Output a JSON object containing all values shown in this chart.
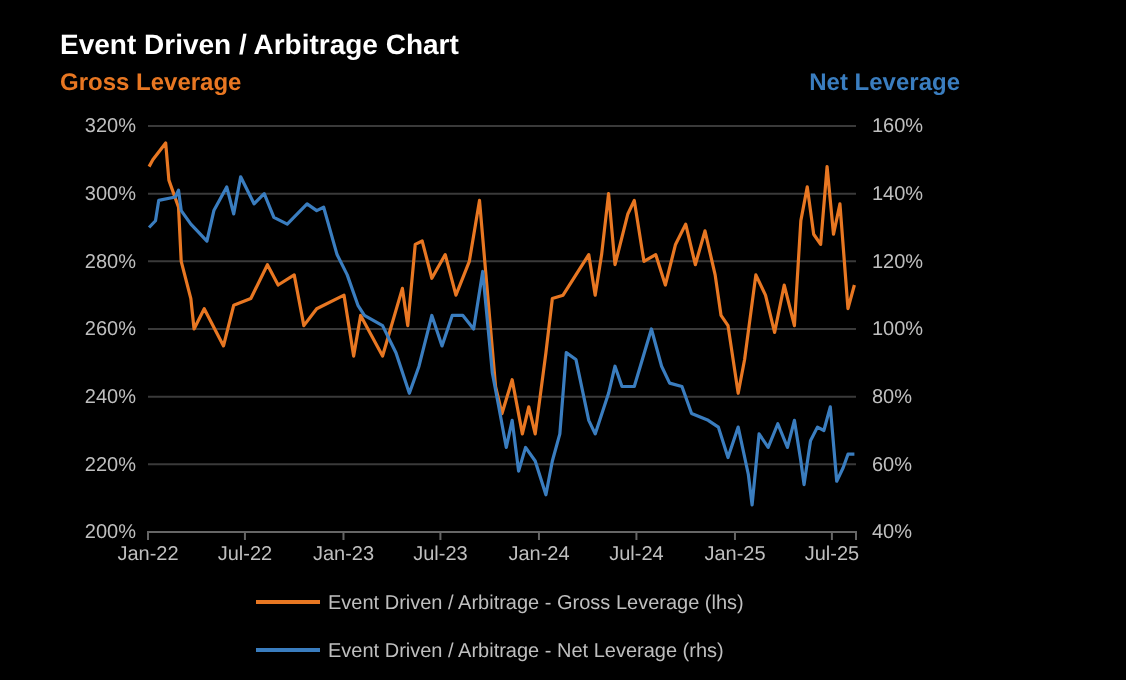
{
  "chart_data": {
    "type": "line",
    "title": "Event Driven / Arbitrage Chart",
    "ylabel": "Gross Leverage",
    "y2label": "Net Leverage",
    "xlim": [
      "2022-01-01",
      "2025-08-15"
    ],
    "xticks": [
      {
        "value": "2022-01-01",
        "label": "Jan-22"
      },
      {
        "value": "2022-07-01",
        "label": "Jul-22"
      },
      {
        "value": "2023-01-01",
        "label": "Jan-23"
      },
      {
        "value": "2023-07-01",
        "label": "Jul-23"
      },
      {
        "value": "2024-01-01",
        "label": "Jan-24"
      },
      {
        "value": "2024-07-01",
        "label": "Jul-24"
      },
      {
        "value": "2025-01-01",
        "label": "Jan-25"
      },
      {
        "value": "2025-07-01",
        "label": "Jul-25"
      }
    ],
    "ylim": [
      200,
      320
    ],
    "yticks": [
      {
        "value": 200,
        "label": "200%"
      },
      {
        "value": 220,
        "label": "220%"
      },
      {
        "value": 240,
        "label": "240%"
      },
      {
        "value": 260,
        "label": "260%"
      },
      {
        "value": 280,
        "label": "280%"
      },
      {
        "value": 300,
        "label": "300%"
      },
      {
        "value": 320,
        "label": "320%"
      }
    ],
    "y2lim": [
      40,
      160
    ],
    "y2ticks": [
      {
        "value": 40,
        "label": "40%"
      },
      {
        "value": 60,
        "label": "60%"
      },
      {
        "value": 80,
        "label": "80%"
      },
      {
        "value": 100,
        "label": "100%"
      },
      {
        "value": 120,
        "label": "120%"
      },
      {
        "value": 140,
        "label": "140%"
      },
      {
        "value": 160,
        "label": "160%"
      }
    ],
    "grid": "y",
    "legend": "bottom",
    "marker": "none",
    "line_style": "solid",
    "series": [
      {
        "name": "Event Driven / Arbitrage - Gross Leverage (lhs)",
        "color": "#e87722",
        "x": [
          "2022-01-03",
          "2022-01-10",
          "2022-02-03",
          "2022-02-09",
          "2022-02-27",
          "2022-03-04",
          "2022-03-22",
          "2022-03-28",
          "2022-04-16",
          "2022-05-22",
          "2022-06-10",
          "2022-07-12",
          "2022-08-12",
          "2022-09-01",
          "2022-10-01",
          "2022-10-19",
          "2022-11-12",
          "2023-01-02",
          "2023-01-20",
          "2023-02-02",
          "2023-03-15",
          "2023-04-21",
          "2023-05-01",
          "2023-05-15",
          "2023-05-28",
          "2023-06-15",
          "2023-07-10",
          "2023-07-30",
          "2023-08-24",
          "2023-09-12",
          "2023-09-24",
          "2023-10-12",
          "2023-10-24",
          "2023-11-12",
          "2023-12-01",
          "2023-12-13",
          "2023-12-25",
          "2024-01-14",
          "2024-01-26",
          "2024-02-15",
          "2024-03-10",
          "2024-04-03",
          "2024-04-15",
          "2024-04-27",
          "2024-05-10",
          "2024-05-22",
          "2024-06-15",
          "2024-06-27",
          "2024-07-15",
          "2024-08-06",
          "2024-08-24",
          "2024-09-12",
          "2024-10-01",
          "2024-10-19",
          "2024-11-06",
          "2024-11-25",
          "2024-12-06",
          "2024-12-19",
          "2025-01-07",
          "2025-01-19",
          "2025-02-09",
          "2025-02-27",
          "2025-03-16",
          "2025-04-03",
          "2025-04-22",
          "2025-05-04",
          "2025-05-16",
          "2025-05-28",
          "2025-06-10",
          "2025-06-22",
          "2025-07-04",
          "2025-07-16",
          "2025-07-31",
          "2025-08-12"
        ],
        "values": [
          308,
          310,
          315,
          304,
          296,
          280,
          269,
          260,
          266,
          255,
          267,
          269,
          279,
          273,
          276,
          261,
          266,
          270,
          252,
          264,
          252,
          272,
          261,
          285,
          286,
          275,
          282,
          270,
          280,
          298,
          276,
          243,
          235,
          245,
          229,
          237,
          229,
          253,
          269,
          270,
          276,
          282,
          270,
          282,
          300,
          279,
          294,
          298,
          280,
          282,
          273,
          285,
          291,
          279,
          289,
          276,
          264,
          261,
          241,
          251,
          276,
          270,
          259,
          273,
          261,
          292,
          302,
          288,
          285,
          308,
          288,
          297,
          266,
          273
        ]
      },
      {
        "name": "Event Driven / Arbitrage - Net Leverage (rhs)",
        "color": "#3a7dbf",
        "axis": "y2",
        "x": [
          "2022-01-03",
          "2022-01-15",
          "2022-01-21",
          "2022-02-21",
          "2022-02-27",
          "2022-03-04",
          "2022-03-22",
          "2022-04-03",
          "2022-04-21",
          "2022-05-04",
          "2022-05-28",
          "2022-06-10",
          "2022-06-23",
          "2022-07-18",
          "2022-08-06",
          "2022-08-24",
          "2022-09-18",
          "2022-10-25",
          "2022-11-12",
          "2022-11-25",
          "2022-12-20",
          "2023-01-08",
          "2023-01-28",
          "2023-02-09",
          "2023-03-15",
          "2023-04-09",
          "2023-05-04",
          "2023-05-22",
          "2023-06-15",
          "2023-07-04",
          "2023-07-23",
          "2023-08-12",
          "2023-09-01",
          "2023-09-18",
          "2023-10-06",
          "2023-10-18",
          "2023-11-01",
          "2023-11-12",
          "2023-11-24",
          "2023-12-07",
          "2023-12-25",
          "2024-01-14",
          "2024-01-26",
          "2024-02-09",
          "2024-02-21",
          "2024-03-10",
          "2024-04-03",
          "2024-04-15",
          "2024-05-10",
          "2024-05-22",
          "2024-06-04",
          "2024-06-27",
          "2024-07-29",
          "2024-08-17",
          "2024-09-01",
          "2024-09-24",
          "2024-10-12",
          "2024-11-12",
          "2024-12-01",
          "2024-12-19",
          "2025-01-07",
          "2025-01-26",
          "2025-02-02",
          "2025-02-15",
          "2025-03-04",
          "2025-03-22",
          "2025-04-09",
          "2025-04-22",
          "2025-05-04",
          "2025-05-10",
          "2025-05-22",
          "2025-06-04",
          "2025-06-16",
          "2025-06-28",
          "2025-07-10",
          "2025-07-22",
          "2025-07-31",
          "2025-08-12"
        ],
        "values": [
          130,
          132,
          138,
          139,
          141,
          135,
          131,
          129,
          126,
          135,
          142,
          134,
          145,
          137,
          140,
          133,
          131,
          137,
          135,
          136,
          122,
          116,
          107,
          104,
          101,
          93,
          81,
          89,
          104,
          95,
          104,
          104,
          100,
          117,
          87,
          77,
          65,
          73,
          58,
          65,
          61,
          51,
          61,
          69,
          93,
          91,
          73,
          69,
          81,
          89,
          83,
          83,
          100,
          89,
          84,
          83,
          75,
          73,
          71,
          62,
          71,
          57,
          48,
          69,
          65,
          72,
          65,
          73,
          61,
          54,
          67,
          71,
          70,
          77,
          55,
          59,
          63,
          63
        ]
      }
    ]
  }
}
